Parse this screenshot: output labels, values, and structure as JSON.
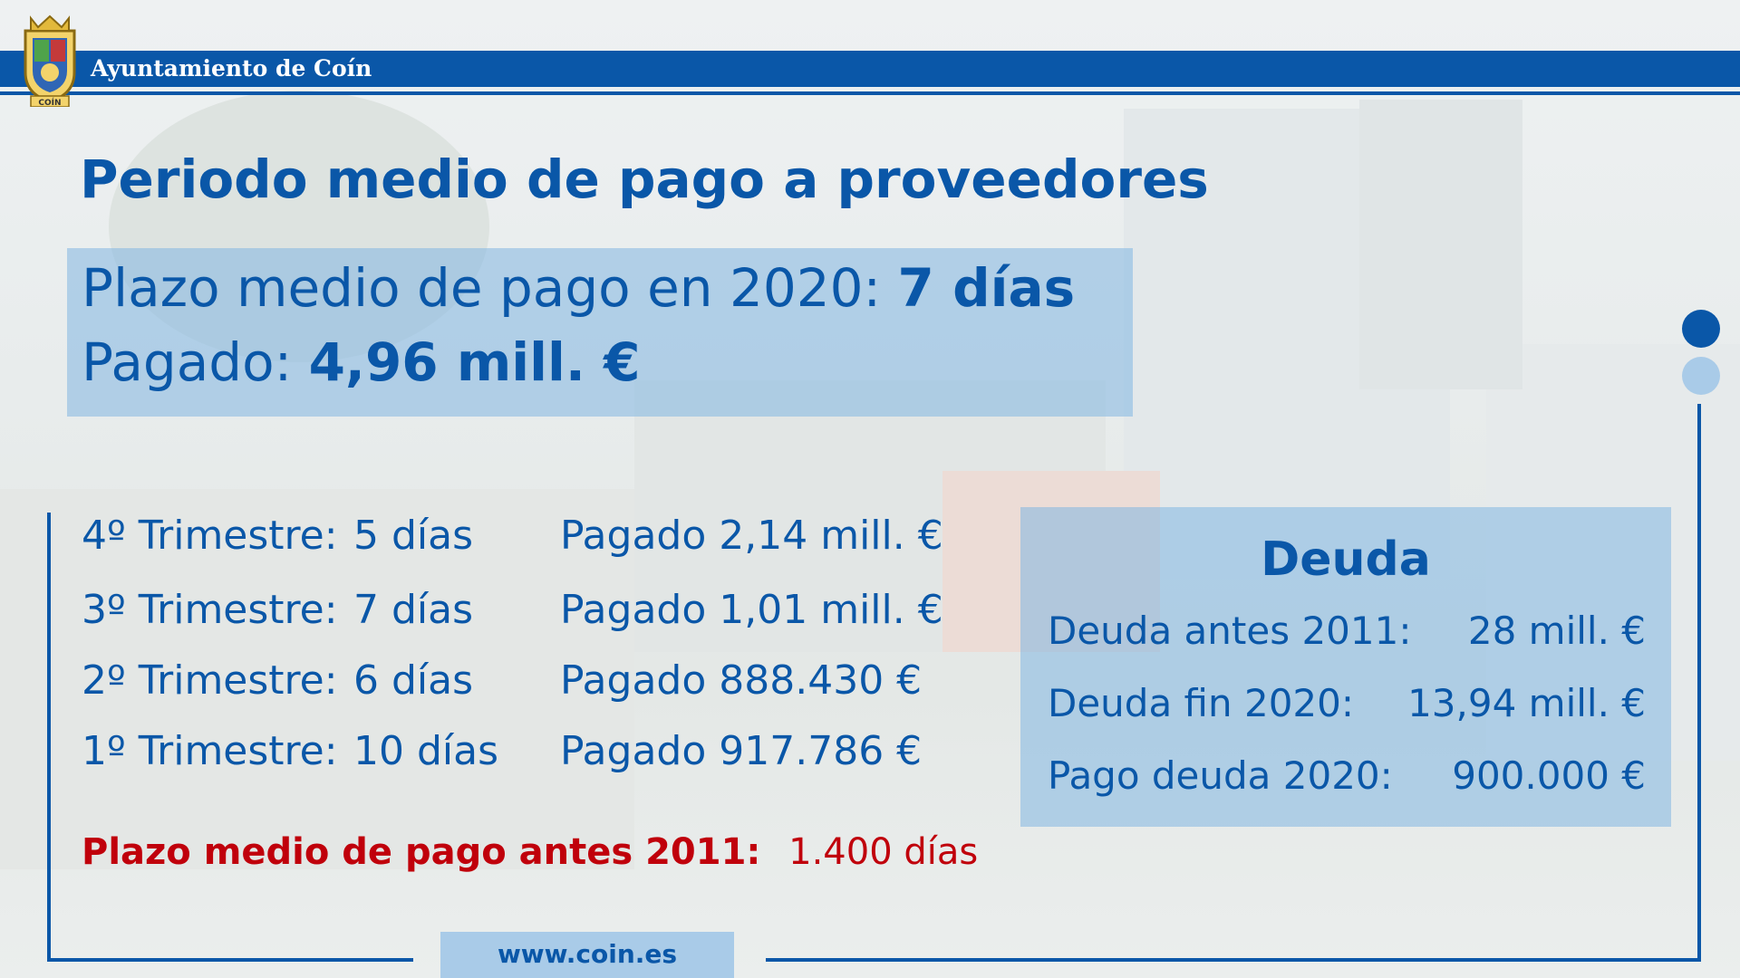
{
  "header": {
    "org_name": "Ayuntamiento de Coín",
    "crest_text": "COÍN",
    "brand_color": "#0a57a8"
  },
  "title": "Periodo medio de pago a proveedores",
  "hero": {
    "line1_label": "Plazo medio de pago en 2020:",
    "line1_value": "7 días",
    "line2_label": "Pagado:",
    "line2_value": "4,96 mill. €"
  },
  "quarters": [
    {
      "label": "4º Trimestre:",
      "days": "5 días",
      "paid": "Pagado 2,14 mill. €"
    },
    {
      "label": "3º Trimestre:",
      "days": "7 días",
      "paid": "Pagado 1,01 mill. €"
    },
    {
      "label": "2º Trimestre:",
      "days": "6 días",
      "paid": "Pagado 888.430 €"
    },
    {
      "label": "1º Trimestre:",
      "days": "10 días",
      "paid": "Pagado 917.786 €"
    }
  ],
  "before2011": {
    "label": "Plazo medio de pago antes 2011:",
    "value": "1.400 días"
  },
  "debt": {
    "heading": "Deuda",
    "rows": [
      {
        "label": "Deuda antes 2011:",
        "value": "28 mill. €"
      },
      {
        "label": "Deuda fin 2020:",
        "value": "13,94 mill. €"
      },
      {
        "label": "Pago deuda 2020:",
        "value": "900.000 €"
      }
    ]
  },
  "footer": {
    "website": "www.coin.es"
  }
}
